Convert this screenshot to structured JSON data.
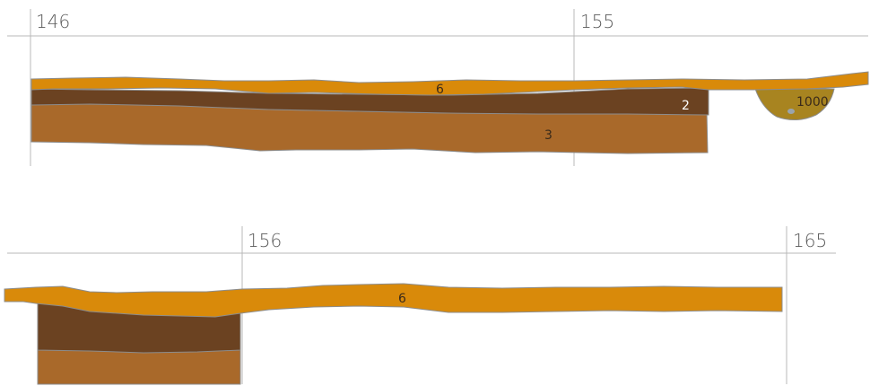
{
  "colors": {
    "layer_6": "#d98a0a",
    "layer_2": "#6b4221",
    "layer_3": "#a9692a",
    "feature_1000": "#a88420",
    "feature_1000_inclusion": "#9aa4ad",
    "gridline": "#b8b8b8",
    "outline": "#8c8c8c",
    "label_dark": "#3a2a1a",
    "label_light": "#ffffff"
  },
  "top_section": {
    "stations": [
      "146",
      "155"
    ],
    "layers": {
      "layer_6": "6",
      "layer_2": "2",
      "layer_3": "3",
      "feature_1000": "1000"
    }
  },
  "bottom_section": {
    "stations": [
      "156",
      "165"
    ],
    "layers": {
      "layer_6": "6"
    }
  }
}
